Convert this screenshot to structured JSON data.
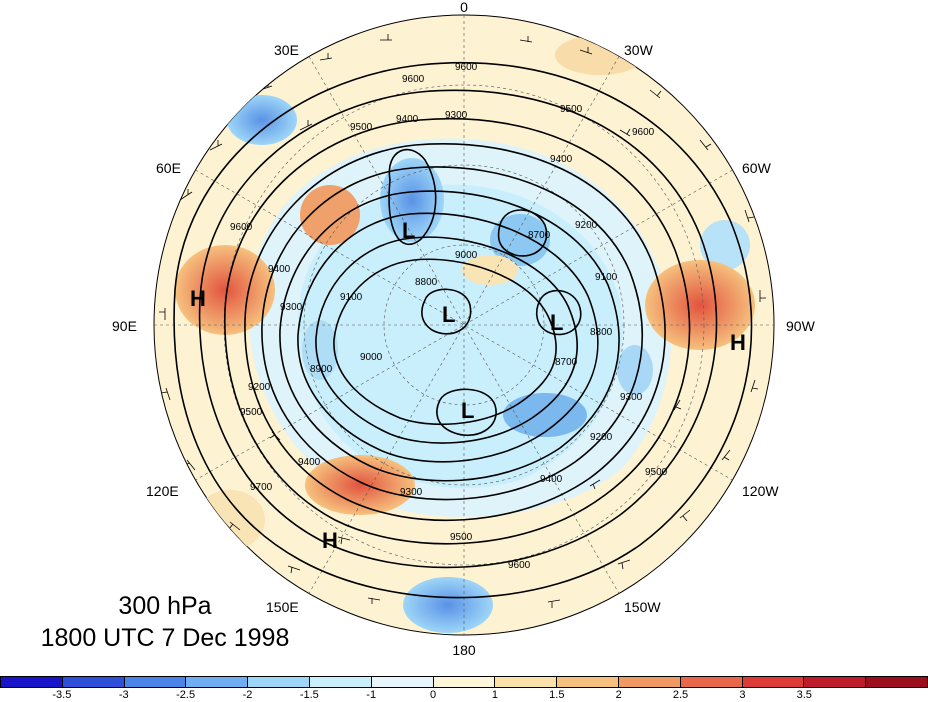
{
  "title": {
    "level": "300 hPa",
    "datetime": "1800 UTC 7 Dec 1998"
  },
  "longitude_labels": [
    {
      "id": "lon-0",
      "text": "0"
    },
    {
      "id": "lon-30w",
      "text": "30W"
    },
    {
      "id": "lon-60w",
      "text": "60W"
    },
    {
      "id": "lon-90w",
      "text": "90W"
    },
    {
      "id": "lon-120w",
      "text": "120W"
    },
    {
      "id": "lon-150w",
      "text": "150W"
    },
    {
      "id": "lon-180",
      "text": "180"
    },
    {
      "id": "lon-150e",
      "text": "150E"
    },
    {
      "id": "lon-120e",
      "text": "120E"
    },
    {
      "id": "lon-90e",
      "text": "90E"
    },
    {
      "id": "lon-60e",
      "text": "60E"
    },
    {
      "id": "lon-30e",
      "text": "30E"
    }
  ],
  "pressure_centers": [
    {
      "type": "H",
      "label": "H"
    },
    {
      "type": "H",
      "label": "H"
    },
    {
      "type": "H",
      "label": "H"
    },
    {
      "type": "L",
      "label": "L"
    },
    {
      "type": "L",
      "label": "L"
    },
    {
      "type": "L",
      "label": "L"
    },
    {
      "type": "L",
      "label": "L"
    }
  ],
  "contour_labels": [
    "9600",
    "9500",
    "9400",
    "9300",
    "9200",
    "9100",
    "9000",
    "8900",
    "8800",
    "8700",
    "9700"
  ],
  "colorbar": {
    "colors": [
      "#1a14c8",
      "#2e4fd9",
      "#4a84e8",
      "#6faef2",
      "#9ed6f8",
      "#c9effc",
      "#e6f6fc",
      "#fdf6d8",
      "#f8e2a9",
      "#f6c17e",
      "#f09a63",
      "#e8674a",
      "#dd3a37",
      "#bd1a2b",
      "#9c0d1e"
    ],
    "tick_labels": [
      "-3.5",
      "-3",
      "-2.5",
      "-2",
      "-1.5",
      "-1",
      "0",
      "1",
      "1.5",
      "2",
      "2.5",
      "3",
      "3.5"
    ]
  }
}
